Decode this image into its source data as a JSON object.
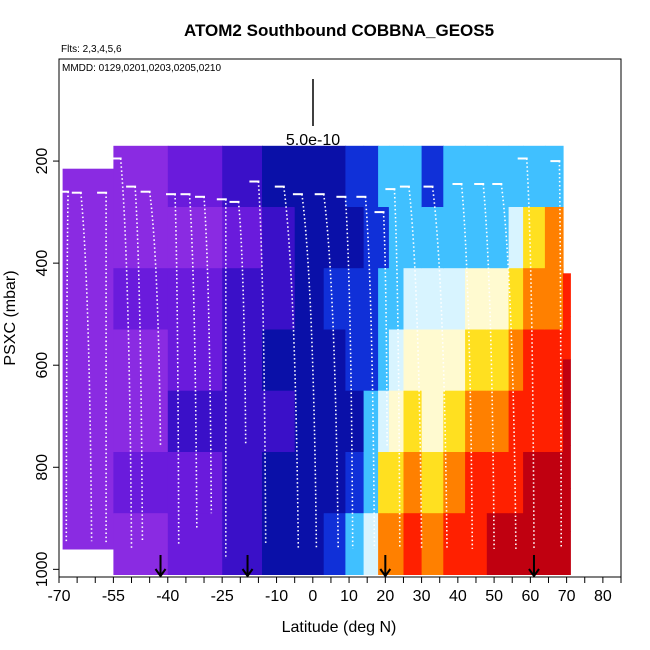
{
  "chart_data": {
    "type": "heatmap",
    "title": "ATOM2 Southbound COBBNA_GEOS5",
    "flights_label": "Flts: 2,3,4,5,6",
    "dates_label": "MMDD: 0129,0201,0203,0205,0210",
    "xlabel": "Latitude (deg N)",
    "ylabel": "PSXC (mbar)",
    "xlim": [
      -70,
      85
    ],
    "ylim": [
      1015,
      0
    ],
    "x_ticks": [
      -70,
      -55,
      -40,
      -25,
      -10,
      0,
      10,
      20,
      30,
      40,
      50,
      60,
      70,
      80
    ],
    "x_minor_ticks": [
      -65,
      -60,
      -50,
      -45,
      -35,
      -30,
      -20,
      -15,
      -5,
      5,
      15,
      25,
      35,
      45,
      55,
      65,
      75,
      85
    ],
    "y_ticks": [
      200,
      400,
      600,
      800,
      1000
    ],
    "scale_bar_label": "5.0e-10",
    "grid": false,
    "legend": "none",
    "colors": {
      "purple": "#8a2be2",
      "violet": "#6a1bdc",
      "indigo": "#3a10c8",
      "navy": "#0a10a8",
      "blue": "#1030d8",
      "sky": "#40c0ff",
      "pale": "#d8f4ff",
      "cream": "#fffad0",
      "yellow": "#ffe020",
      "orange": "#ff8000",
      "red": "#ff2000",
      "darkred": "#c00010"
    },
    "arrow_latitudes": [
      -42,
      -18,
      20,
      61
    ],
    "columns": [
      {
        "lat_start": -69,
        "lat_end": -55,
        "p_top": 215,
        "p_bottom": 960,
        "colors": [
          "purple"
        ]
      },
      {
        "lat_start": -55,
        "lat_end": -40,
        "p_top": 170,
        "p_bottom": 1010,
        "colors": [
          "purple",
          "purple",
          "violet",
          "purple",
          "purple",
          "violet",
          "purple"
        ]
      },
      {
        "lat_start": -40,
        "lat_end": -25,
        "p_top": 170,
        "p_bottom": 1010,
        "colors": [
          "violet",
          "purple",
          "violet",
          "violet",
          "indigo",
          "violet",
          "violet"
        ]
      },
      {
        "lat_start": -25,
        "lat_end": -14,
        "p_top": 170,
        "p_bottom": 1010,
        "colors": [
          "indigo",
          "violet",
          "indigo",
          "indigo",
          "indigo",
          "indigo",
          "indigo"
        ]
      },
      {
        "lat_start": -14,
        "lat_end": -5,
        "p_top": 170,
        "p_bottom": 1010,
        "colors": [
          "navy",
          "indigo",
          "indigo",
          "navy",
          "indigo",
          "navy",
          "navy"
        ]
      },
      {
        "lat_start": -5,
        "lat_end": 3,
        "p_top": 170,
        "p_bottom": 1010,
        "colors": [
          "navy",
          "navy",
          "navy",
          "navy",
          "navy",
          "navy",
          "navy"
        ]
      },
      {
        "lat_start": 3,
        "lat_end": 9,
        "p_top": 170,
        "p_bottom": 1010,
        "colors": [
          "navy",
          "navy",
          "blue",
          "navy",
          "navy",
          "navy",
          "blue"
        ]
      },
      {
        "lat_start": 9,
        "lat_end": 14,
        "p_top": 170,
        "p_bottom": 1010,
        "colors": [
          "blue",
          "navy",
          "blue",
          "blue",
          "navy",
          "blue",
          "sky"
        ]
      },
      {
        "lat_start": 14,
        "lat_end": 18,
        "p_top": 170,
        "p_bottom": 1010,
        "colors": [
          "blue",
          "blue",
          "blue",
          "blue",
          "sky",
          "sky",
          "pale"
        ]
      },
      {
        "lat_start": 18,
        "lat_end": 21,
        "p_top": 170,
        "p_bottom": 1010,
        "colors": [
          "sky",
          "blue",
          "sky",
          "sky",
          "pale",
          "yellow",
          "orange"
        ]
      },
      {
        "lat_start": 21,
        "lat_end": 25,
        "p_top": 170,
        "p_bottom": 1010,
        "colors": [
          "sky",
          "sky",
          "sky",
          "pale",
          "cream",
          "yellow",
          "orange"
        ]
      },
      {
        "lat_start": 25,
        "lat_end": 30,
        "p_top": 170,
        "p_bottom": 1010,
        "colors": [
          "sky",
          "sky",
          "pale",
          "cream",
          "yellow",
          "orange",
          "red"
        ]
      },
      {
        "lat_start": 30,
        "lat_end": 36,
        "p_top": 170,
        "p_bottom": 1010,
        "colors": [
          "blue",
          "sky",
          "pale",
          "cream",
          "cream",
          "yellow",
          "orange"
        ]
      },
      {
        "lat_start": 36,
        "lat_end": 42,
        "p_top": 170,
        "p_bottom": 1010,
        "colors": [
          "sky",
          "sky",
          "pale",
          "cream",
          "yellow",
          "orange",
          "red"
        ]
      },
      {
        "lat_start": 42,
        "lat_end": 48,
        "p_top": 170,
        "p_bottom": 1010,
        "colors": [
          "sky",
          "sky",
          "cream",
          "yellow",
          "orange",
          "red",
          "red"
        ]
      },
      {
        "lat_start": 48,
        "lat_end": 54,
        "p_top": 170,
        "p_bottom": 1010,
        "colors": [
          "sky",
          "sky",
          "cream",
          "yellow",
          "orange",
          "red",
          "darkred"
        ]
      },
      {
        "lat_start": 54,
        "lat_end": 58,
        "p_top": 170,
        "p_bottom": 1010,
        "colors": [
          "sky",
          "pale",
          "yellow",
          "orange",
          "red",
          "red",
          "darkred"
        ]
      },
      {
        "lat_start": 58,
        "lat_end": 64,
        "p_top": 170,
        "p_bottom": 1010,
        "colors": [
          "sky",
          "yellow",
          "orange",
          "red",
          "red",
          "darkred",
          "darkred"
        ]
      },
      {
        "lat_start": 64,
        "lat_end": 69,
        "p_top": 170,
        "p_bottom": 1010,
        "colors": [
          "sky",
          "orange",
          "orange",
          "red",
          "red",
          "darkred",
          "darkred"
        ]
      },
      {
        "lat_start": 69,
        "lat_end": 71,
        "p_top": 420,
        "p_bottom": 1010,
        "colors": [
          "red",
          "red",
          "darkred",
          "darkred",
          "darkred",
          "darkred",
          "darkred"
        ]
      }
    ],
    "profiles": [
      {
        "lat_top": -67.5,
        "lat_bottom": -68,
        "p_top": 260,
        "p_bottom": 950
      },
      {
        "lat_top": -64,
        "lat_bottom": -61,
        "p_top": 262,
        "p_bottom": 945
      },
      {
        "lat_top": -57,
        "lat_bottom": -57,
        "p_top": 262,
        "p_bottom": 950
      },
      {
        "lat_top": -53,
        "lat_bottom": -50,
        "p_top": 195,
        "p_bottom": 960
      },
      {
        "lat_top": -49,
        "lat_bottom": -47,
        "p_top": 250,
        "p_bottom": 945
      },
      {
        "lat_top": -45,
        "lat_bottom": -42,
        "p_top": 260,
        "p_bottom": 760
      },
      {
        "lat_top": -38,
        "lat_bottom": -37,
        "p_top": 265,
        "p_bottom": 950
      },
      {
        "lat_top": -34,
        "lat_bottom": -32,
        "p_top": 265,
        "p_bottom": 920
      },
      {
        "lat_top": -30,
        "lat_bottom": -28,
        "p_top": 270,
        "p_bottom": 890
      },
      {
        "lat_top": -24,
        "lat_bottom": -24,
        "p_top": 275,
        "p_bottom": 975
      },
      {
        "lat_top": -20.5,
        "lat_bottom": -18.5,
        "p_top": 280,
        "p_bottom": 755
      },
      {
        "lat_top": -15,
        "lat_bottom": -13,
        "p_top": 240,
        "p_bottom": 950
      },
      {
        "lat_top": -8,
        "lat_bottom": -4,
        "p_top": 250,
        "p_bottom": 960
      },
      {
        "lat_top": -3,
        "lat_bottom": 1,
        "p_top": 265,
        "p_bottom": 960
      },
      {
        "lat_top": 3,
        "lat_bottom": 7,
        "p_top": 265,
        "p_bottom": 960
      },
      {
        "lat_top": 9,
        "lat_bottom": 11,
        "p_top": 270,
        "p_bottom": 960
      },
      {
        "lat_top": 14.5,
        "lat_bottom": 17,
        "p_top": 270,
        "p_bottom": 960
      },
      {
        "lat_top": 19.5,
        "lat_bottom": 20.5,
        "p_top": 300,
        "p_bottom": 760
      },
      {
        "lat_top": 22.5,
        "lat_bottom": 24,
        "p_top": 255,
        "p_bottom": 960
      },
      {
        "lat_top": 26.5,
        "lat_bottom": 30,
        "p_top": 250,
        "p_bottom": 960
      },
      {
        "lat_top": 33,
        "lat_bottom": 37,
        "p_top": 250,
        "p_bottom": 960
      },
      {
        "lat_top": 41,
        "lat_bottom": 44,
        "p_top": 245,
        "p_bottom": 960
      },
      {
        "lat_top": 47,
        "lat_bottom": 50,
        "p_top": 245,
        "p_bottom": 960
      },
      {
        "lat_top": 52,
        "lat_bottom": 56,
        "p_top": 245,
        "p_bottom": 960
      },
      {
        "lat_top": 59,
        "lat_bottom": 61,
        "p_top": 195,
        "p_bottom": 960
      },
      {
        "lat_top": 68,
        "lat_bottom": 68.5,
        "p_top": 200,
        "p_bottom": 960
      }
    ]
  }
}
